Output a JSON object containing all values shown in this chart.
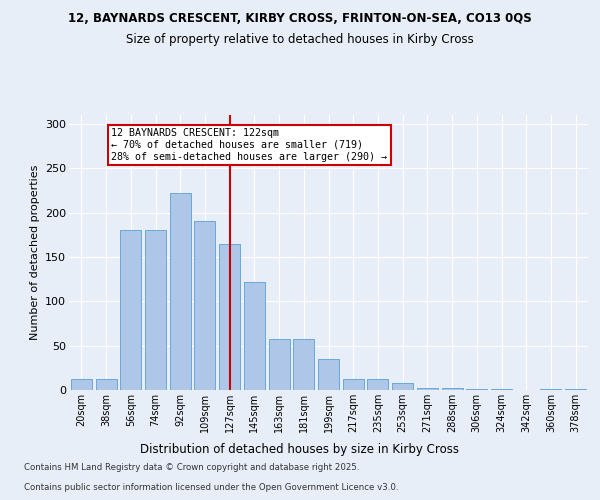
{
  "title1": "12, BAYNARDS CRESCENT, KIRBY CROSS, FRINTON-ON-SEA, CO13 0QS",
  "title2": "Size of property relative to detached houses in Kirby Cross",
  "xlabel": "Distribution of detached houses by size in Kirby Cross",
  "ylabel": "Number of detached properties",
  "categories": [
    "20sqm",
    "38sqm",
    "56sqm",
    "74sqm",
    "92sqm",
    "109sqm",
    "127sqm",
    "145sqm",
    "163sqm",
    "181sqm",
    "199sqm",
    "217sqm",
    "235sqm",
    "253sqm",
    "271sqm",
    "288sqm",
    "306sqm",
    "324sqm",
    "342sqm",
    "360sqm",
    "378sqm"
  ],
  "values": [
    12,
    12,
    180,
    180,
    222,
    190,
    165,
    122,
    57,
    57,
    35,
    12,
    12,
    8,
    2,
    2,
    1,
    1,
    0,
    1,
    1
  ],
  "bar_color": "#aec6e8",
  "bar_edge_color": "#5a9fd4",
  "vline_x": 6,
  "vline_color": "#cc0000",
  "annotation_title": "12 BAYNARDS CRESCENT: 122sqm",
  "annotation_line1": "← 70% of detached houses are smaller (719)",
  "annotation_line2": "28% of semi-detached houses are larger (290) →",
  "annotation_box_color": "#cc0000",
  "annotation_bg": "#ffffff",
  "ylim": [
    0,
    310
  ],
  "yticks": [
    0,
    50,
    100,
    150,
    200,
    250,
    300
  ],
  "footnote1": "Contains HM Land Registry data © Crown copyright and database right 2025.",
  "footnote2": "Contains public sector information licensed under the Open Government Licence v3.0.",
  "bg_color": "#e8eef8",
  "plot_bg_color": "#e8eef8"
}
